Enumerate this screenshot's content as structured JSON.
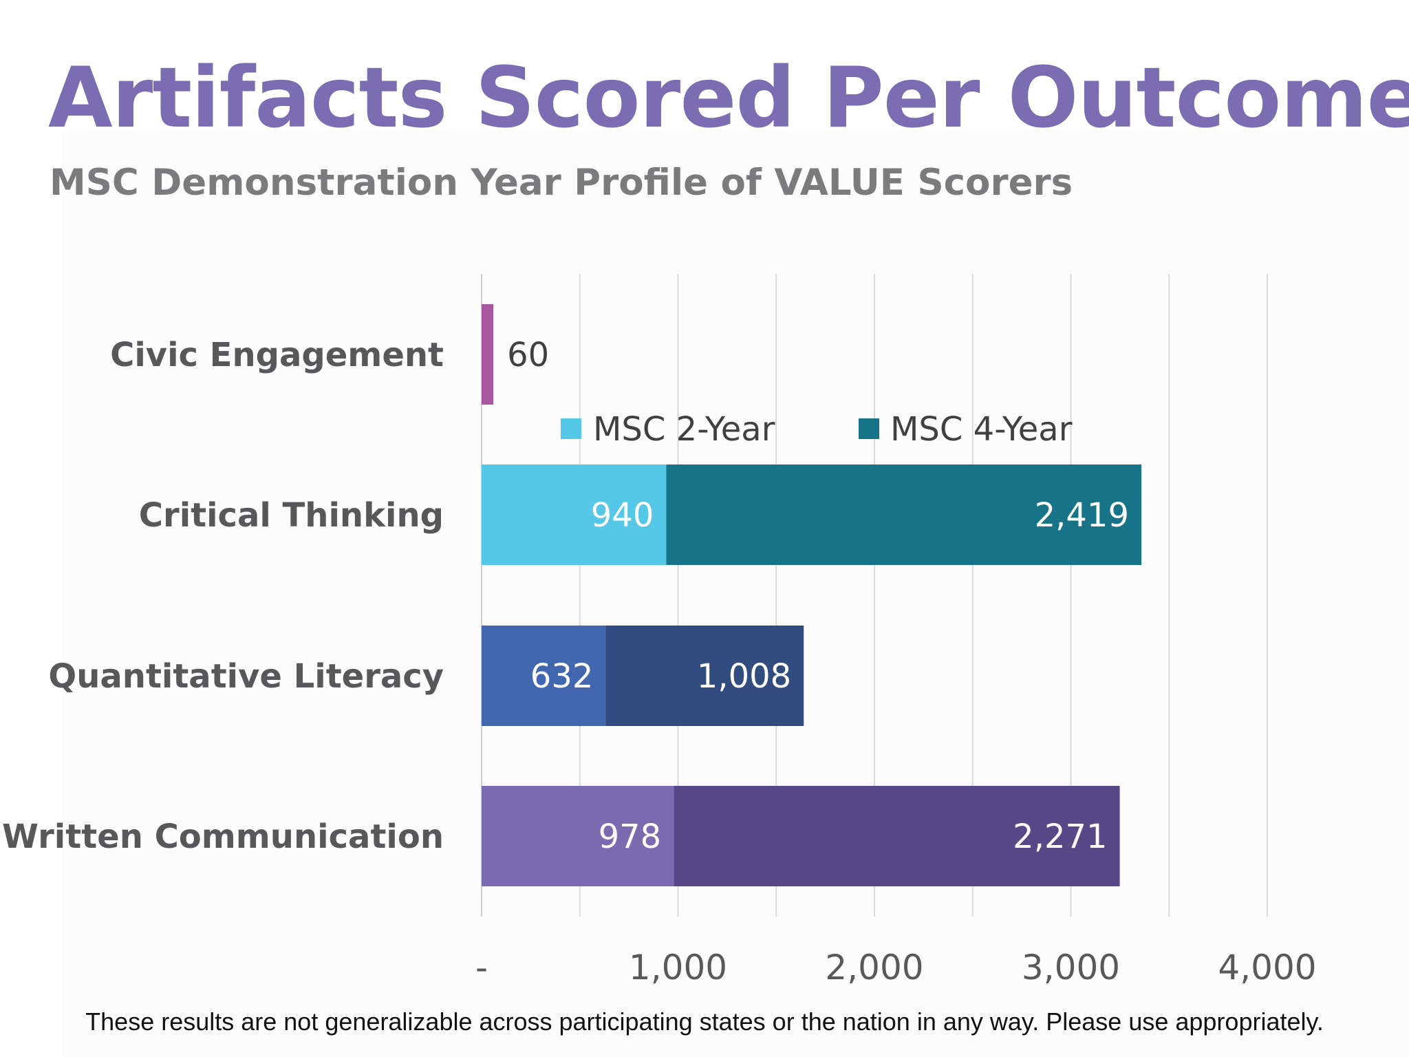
{
  "title": "Artifacts Scored Per Outcome",
  "subtitle": "MSC Demonstration Year Profile of VALUE Scorers",
  "footnote": "These results are not generalizable across participating states or the nation in any way. Please use appropriately.",
  "chart_data": {
    "type": "bar",
    "orientation": "horizontal",
    "stacked": true,
    "categories": [
      "Civic Engagement",
      "Critical Thinking",
      "Quantitative Literacy",
      "Written Communication"
    ],
    "series": [
      {
        "name": "MSC 2-Year",
        "values": [
          null,
          940,
          632,
          978
        ],
        "labels": [
          "",
          "940",
          "632",
          "978"
        ],
        "colors": [
          "#a8589f",
          "#54c8e6",
          "#4367ae",
          "#7a6bb0"
        ]
      },
      {
        "name": "MSC 4-Year",
        "values": [
          60,
          2419,
          1008,
          2271
        ],
        "labels": [
          "60",
          "2,419",
          "1,008",
          "2,271"
        ],
        "colors": [
          "#a8589f",
          "#177488",
          "#324c80",
          "#574987"
        ]
      }
    ],
    "legend": {
      "placement": "inside-top-center",
      "entries": [
        {
          "name": "MSC 2-Year",
          "color": "#54c8e6"
        },
        {
          "name": "MSC 4-Year",
          "color": "#177488"
        }
      ]
    },
    "xlim": [
      0,
      4000
    ],
    "xticks": [
      0,
      1000,
      2000,
      3000,
      4000
    ],
    "xtick_labels": [
      "-",
      "1,000",
      "2,000",
      "3,000",
      "4,000"
    ],
    "grid": true,
    "xlabel": "",
    "ylabel": ""
  }
}
